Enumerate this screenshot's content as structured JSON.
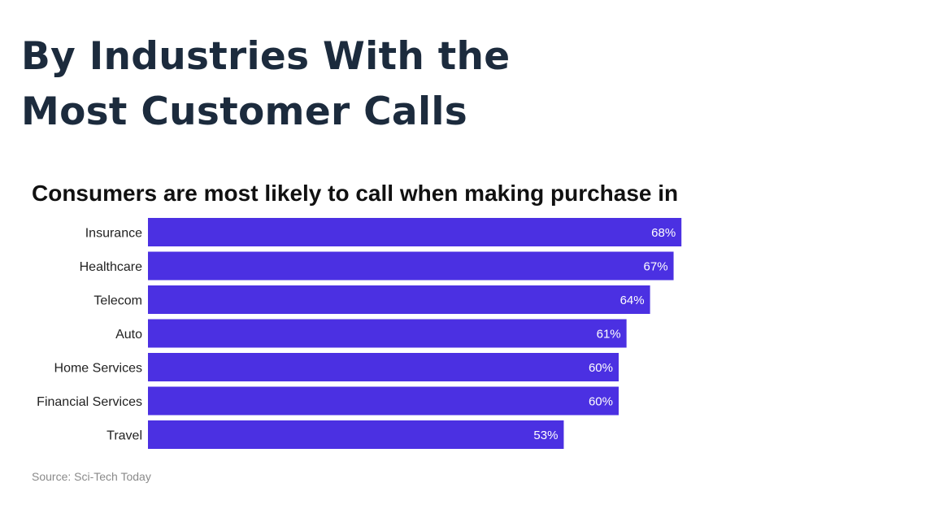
{
  "page": {
    "title": "By Industries With the Most Customer Calls"
  },
  "chart_data": {
    "type": "bar",
    "orientation": "horizontal",
    "title": "Consumers are most likely to call when making purchase in",
    "categories": [
      "Insurance",
      "Healthcare",
      "Telecom",
      "Auto",
      "Home Services",
      "Financial Services",
      "Travel"
    ],
    "values": [
      68,
      67,
      64,
      61,
      60,
      60,
      53
    ],
    "value_labels": [
      "68%",
      "67%",
      "64%",
      "61%",
      "60%",
      "60%",
      "53%"
    ],
    "unit": "%",
    "xlim": [
      0,
      100
    ],
    "bar_color": "#4b30e2",
    "grid": false,
    "legend": "none"
  },
  "source": {
    "text": "Source: Sci-Tech Today"
  }
}
